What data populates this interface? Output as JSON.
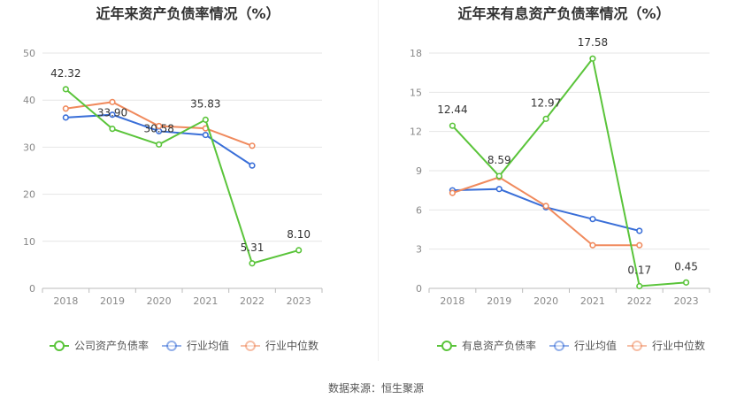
{
  "source_label": "数据来源：恒生聚源",
  "chart_data": [
    {
      "type": "line",
      "title": "近年来资产负债率情况（%）",
      "categories": [
        "2018",
        "2019",
        "2020",
        "2021",
        "2022",
        "2023"
      ],
      "ylim": [
        0,
        50
      ],
      "yticks": [
        0,
        10,
        20,
        30,
        40,
        50
      ],
      "grid": true,
      "legend_position": "bottom",
      "series": [
        {
          "name": "公司资产负债率",
          "color": "#5ac43a",
          "values": [
            42.32,
            33.9,
            30.58,
            35.83,
            5.31,
            8.1
          ],
          "labels": [
            "42.32",
            "33.90",
            "30.58",
            "35.83",
            "5.31",
            "8.10"
          ]
        },
        {
          "name": "行业均值",
          "color": "#3a6fd8",
          "values": [
            36.3,
            36.9,
            33.4,
            32.6,
            26.1,
            null
          ]
        },
        {
          "name": "行业中位数",
          "color": "#f08a5d",
          "values": [
            38.2,
            39.6,
            34.5,
            34.0,
            30.3,
            null
          ]
        }
      ]
    },
    {
      "type": "line",
      "title": "近年来有息资产负债率情况（%）",
      "categories": [
        "2018",
        "2019",
        "2020",
        "2021",
        "2022",
        "2023"
      ],
      "ylim": [
        0,
        18
      ],
      "yticks": [
        0,
        3,
        6,
        9,
        12,
        15,
        18
      ],
      "grid": true,
      "legend_position": "bottom",
      "series": [
        {
          "name": "有息资产负债率",
          "color": "#5ac43a",
          "values": [
            12.44,
            8.59,
            12.97,
            17.58,
            0.17,
            0.45
          ],
          "labels": [
            "12.44",
            "8.59",
            "12.97",
            "17.58",
            "0.17",
            "0.45"
          ]
        },
        {
          "name": "行业均值",
          "color": "#3a6fd8",
          "values": [
            7.5,
            7.6,
            6.2,
            5.3,
            4.4,
            null
          ]
        },
        {
          "name": "行业中位数",
          "color": "#f08a5d",
          "values": [
            7.3,
            8.5,
            6.3,
            3.3,
            3.3,
            null
          ]
        }
      ]
    }
  ]
}
